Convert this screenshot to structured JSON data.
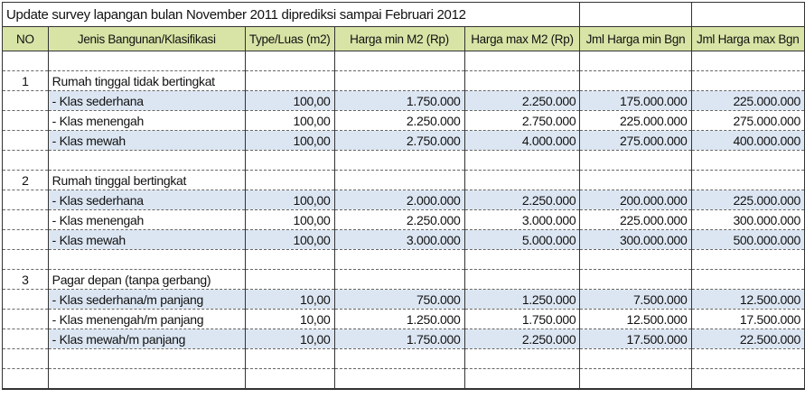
{
  "title": "Update survey lapangan bulan November 2011 diprediksi sampai Februari 2012",
  "headers": [
    "NO",
    "Jenis Bangunan/Klasifikasi",
    "Type/Luas (m2)",
    "Harga min M2 (Rp)",
    "Harga max M2 (Rp)",
    "Jml Harga min Bgn",
    "Jml Harga max Bgn"
  ],
  "highlight_color": "#dce6f2",
  "header_color": "#d8e4a6",
  "groups": [
    {
      "no": "1",
      "name": "Rumah tinggal tidak bertingkat",
      "items": [
        {
          "label": "- Klas sederhana",
          "luas": "100,00",
          "min": "1.750.000",
          "max": "2.250.000",
          "jml_min": "175.000.000",
          "jml_max": "225.000.000",
          "highlight": true
        },
        {
          "label": "- Klas menengah",
          "luas": "100,00",
          "min": "2.250.000",
          "max": "2.750.000",
          "jml_min": "225.000.000",
          "jml_max": "275.000.000",
          "highlight": false
        },
        {
          "label": "- Klas mewah",
          "luas": "100,00",
          "min": "2.750.000",
          "max": "4.000.000",
          "jml_min": "275.000.000",
          "jml_max": "400.000.000",
          "highlight": true
        }
      ]
    },
    {
      "no": "2",
      "name": "Rumah tinggal bertingkat",
      "items": [
        {
          "label": "- Klas sederhana",
          "luas": "100,00",
          "min": "2.000.000",
          "max": "2.250.000",
          "jml_min": "200.000.000",
          "jml_max": "225.000.000",
          "highlight": true
        },
        {
          "label": "- Klas menengah",
          "luas": "100,00",
          "min": "2.250.000",
          "max": "3.000.000",
          "jml_min": "225.000.000",
          "jml_max": "300.000.000",
          "highlight": false
        },
        {
          "label": "- Klas mewah",
          "luas": "100,00",
          "min": "3.000.000",
          "max": "5.000.000",
          "jml_min": "300.000.000",
          "jml_max": "500.000.000",
          "highlight": true
        }
      ]
    },
    {
      "no": "3",
      "name": "Pagar depan (tanpa gerbang)",
      "items": [
        {
          "label": "- Klas sederhana/m panjang",
          "luas": "10,00",
          "min": "750.000",
          "max": "1.250.000",
          "jml_min": "7.500.000",
          "jml_max": "12.500.000",
          "highlight": true
        },
        {
          "label": "- Klas menengah/m panjang",
          "luas": "10,00",
          "min": "1.250.000",
          "max": "1.750.000",
          "jml_min": "12.500.000",
          "jml_max": "17.500.000",
          "highlight": false
        },
        {
          "label": "- Klas mewah/m panjang",
          "luas": "10,00",
          "min": "1.750.000",
          "max": "2.250.000",
          "jml_min": "17.500.000",
          "jml_max": "22.500.000",
          "highlight": true
        }
      ]
    }
  ]
}
